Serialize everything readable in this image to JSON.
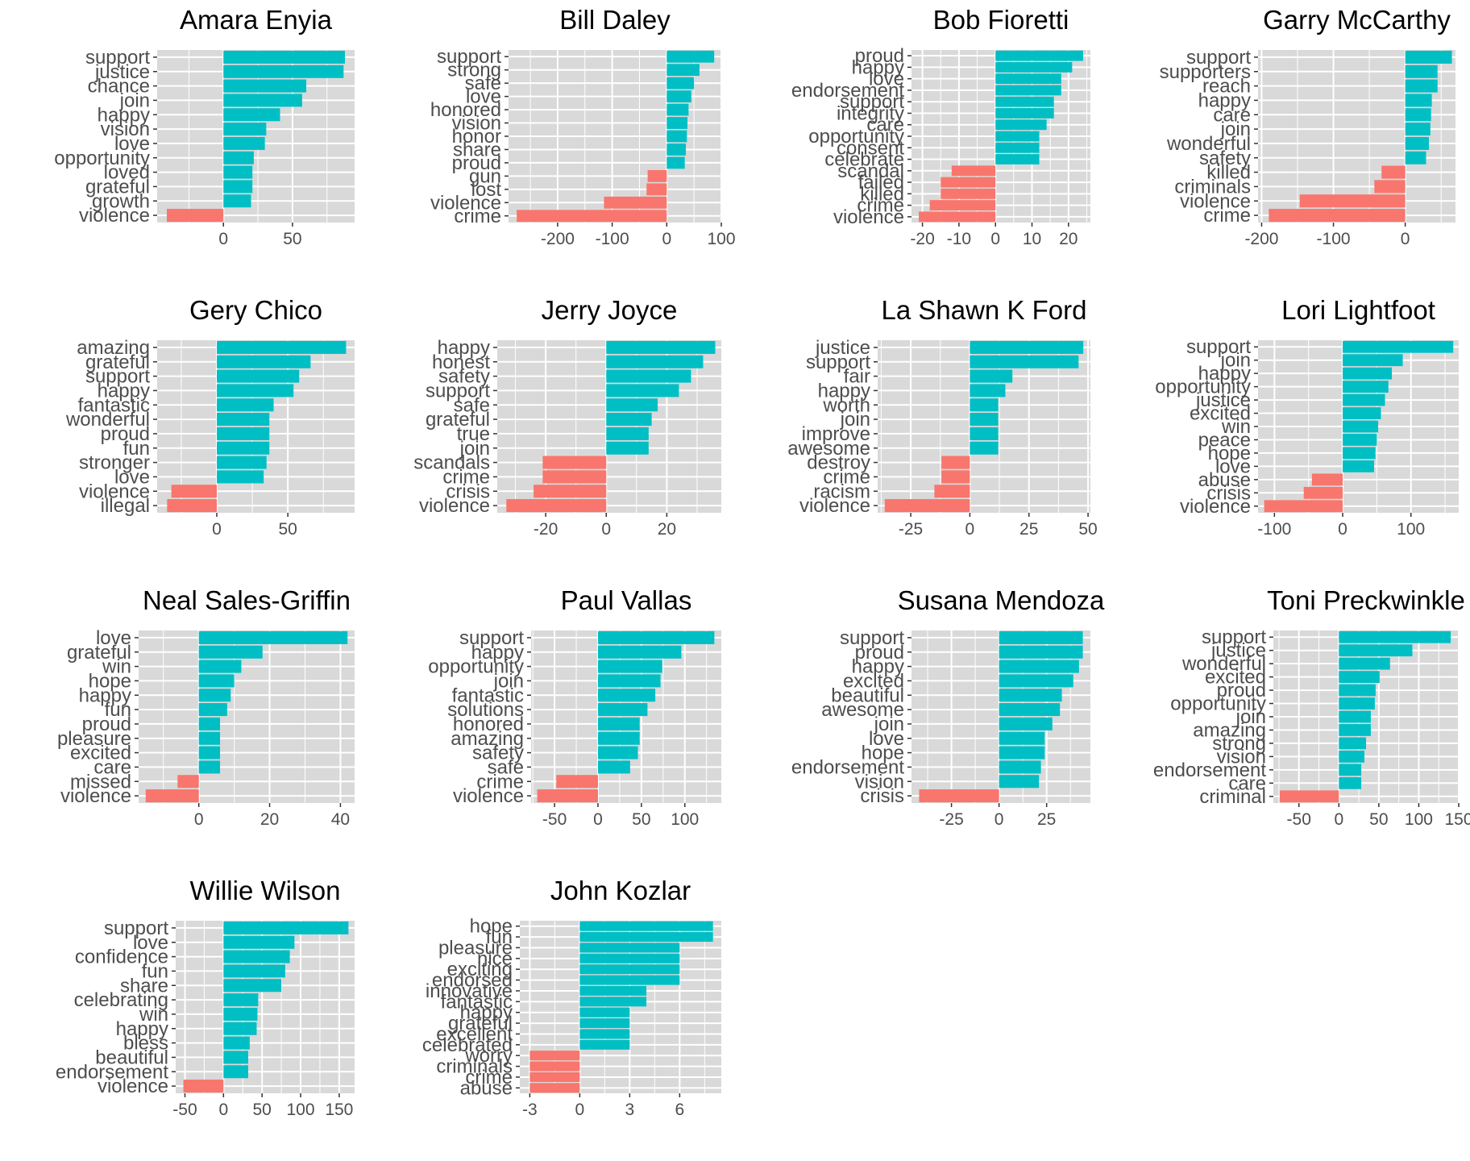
{
  "figure": {
    "colors": {
      "positive": "#00bfc4",
      "negative": "#f8766d",
      "panel_bg": "#d9d9d9",
      "grid": "#ffffff",
      "text": "#4d4d4d"
    }
  },
  "chart_data": [
    {
      "type": "bar",
      "orientation": "horizontal",
      "title": "Amara Enyia",
      "categories": [
        "support",
        "justice",
        "chance",
        "join",
        "happy",
        "vision",
        "love",
        "opportunity",
        "loved",
        "grateful",
        "growth",
        "violence"
      ],
      "values": [
        88,
        87,
        60,
        57,
        41,
        31,
        30,
        22,
        21,
        21,
        20,
        -41
      ],
      "xticks": [
        0,
        50
      ],
      "xlim": [
        -48,
        95
      ]
    },
    {
      "type": "bar",
      "orientation": "horizontal",
      "title": "Bill Daley",
      "categories": [
        "support",
        "strong",
        "safe",
        "love",
        "honored",
        "vision",
        "honor",
        "share",
        "proud",
        "gun",
        "lost",
        "violence",
        "crime"
      ],
      "values": [
        87,
        60,
        50,
        45,
        40,
        38,
        37,
        35,
        33,
        -35,
        -37,
        -115,
        -275
      ],
      "xticks": [
        -200,
        -100,
        0,
        100
      ],
      "xlim": [
        -290,
        100
      ]
    },
    {
      "type": "bar",
      "orientation": "horizontal",
      "title": "Bob Fioretti",
      "categories": [
        "proud",
        "happy",
        "love",
        "endorsement",
        "support",
        "integrity",
        "care",
        "opportunity",
        "consent",
        "celebrate",
        "scandal",
        "failed",
        "killed",
        "crime",
        "violence"
      ],
      "values": [
        24,
        21,
        18,
        18,
        16,
        16,
        14,
        12,
        12,
        12,
        -12,
        -15,
        -15,
        -18,
        -21
      ],
      "xticks": [
        -20,
        -10,
        0,
        10,
        20
      ],
      "xlim": [
        -23,
        26
      ]
    },
    {
      "type": "bar",
      "orientation": "horizontal",
      "title": "Garry McCarthy",
      "categories": [
        "support",
        "supporters",
        "reach",
        "happy",
        "care",
        "join",
        "wonderful",
        "safety",
        "killed",
        "criminals",
        "violence",
        "crime"
      ],
      "values": [
        65,
        45,
        45,
        37,
        36,
        35,
        33,
        29,
        -33,
        -43,
        -147,
        -190
      ],
      "xticks": [
        -200,
        -100,
        0
      ],
      "xlim": [
        -205,
        70
      ]
    },
    {
      "type": "bar",
      "orientation": "horizontal",
      "title": "Gery Chico",
      "categories": [
        "amazing",
        "grateful",
        "support",
        "happy",
        "fantastic",
        "wonderful",
        "proud",
        "fun",
        "stronger",
        "love",
        "violence",
        "illegal"
      ],
      "values": [
        91,
        66,
        58,
        54,
        40,
        37,
        37,
        37,
        35,
        33,
        -32,
        -35
      ],
      "xticks": [
        0,
        50
      ],
      "xlim": [
        -42,
        97
      ]
    },
    {
      "type": "bar",
      "orientation": "horizontal",
      "title": "Jerry Joyce",
      "categories": [
        "happy",
        "honest",
        "safety",
        "support",
        "safe",
        "grateful",
        "true",
        "join",
        "scandals",
        "crime",
        "crisis",
        "violence"
      ],
      "values": [
        36,
        32,
        28,
        24,
        17,
        15,
        14,
        14,
        -21,
        -21,
        -24,
        -33
      ],
      "xticks": [
        -20,
        0,
        20
      ],
      "xlim": [
        -36,
        38
      ]
    },
    {
      "type": "bar",
      "orientation": "horizontal",
      "title": "La Shawn K Ford",
      "categories": [
        "justice",
        "support",
        "fair",
        "happy",
        "worth",
        "join",
        "improve",
        "awesome",
        "destroy",
        "crime",
        "racism",
        "violence"
      ],
      "values": [
        48,
        46,
        18,
        15,
        12,
        12,
        12,
        12,
        -12,
        -12,
        -15,
        -36
      ],
      "xticks": [
        -25,
        0,
        25,
        50
      ],
      "xlim": [
        -39,
        51
      ]
    },
    {
      "type": "bar",
      "orientation": "horizontal",
      "title": "Lori Lightfoot",
      "categories": [
        "support",
        "join",
        "happy",
        "opportunity",
        "justice",
        "excited",
        "win",
        "peace",
        "hope",
        "love",
        "abuse",
        "crisis",
        "violence"
      ],
      "values": [
        162,
        88,
        72,
        67,
        62,
        56,
        52,
        50,
        48,
        46,
        -45,
        -57,
        -115
      ],
      "xticks": [
        -100,
        0,
        100
      ],
      "xlim": [
        -124,
        170
      ]
    },
    {
      "type": "bar",
      "orientation": "horizontal",
      "title": "Neal Sales-Griffin",
      "categories": [
        "love",
        "grateful",
        "win",
        "hope",
        "happy",
        "fun",
        "proud",
        "pleasure",
        "excited",
        "care",
        "missed",
        "violence"
      ],
      "values": [
        42,
        18,
        12,
        10,
        9,
        8,
        6,
        6,
        6,
        6,
        -6,
        -15
      ],
      "xticks": [
        0,
        20,
        40
      ],
      "xlim": [
        -17,
        44
      ]
    },
    {
      "type": "bar",
      "orientation": "horizontal",
      "title": "Paul Vallas",
      "categories": [
        "support",
        "happy",
        "opportunity",
        "join",
        "fantastic",
        "solutions",
        "honored",
        "amazing",
        "safety",
        "safe",
        "crime",
        "violence"
      ],
      "values": [
        134,
        96,
        74,
        72,
        66,
        57,
        48,
        48,
        46,
        37,
        -48,
        -70
      ],
      "xticks": [
        -50,
        0,
        50,
        100
      ],
      "xlim": [
        -77,
        142
      ]
    },
    {
      "type": "bar",
      "orientation": "horizontal",
      "title": "Susana Mendoza",
      "categories": [
        "support",
        "proud",
        "happy",
        "excited",
        "beautiful",
        "awesome",
        "join",
        "love",
        "hope",
        "endorsement",
        "vision",
        "crisis"
      ],
      "values": [
        44,
        44,
        42,
        39,
        33,
        32,
        28,
        24,
        24,
        22,
        21,
        -42
      ],
      "xticks": [
        -25,
        0,
        25
      ],
      "xlim": [
        -46,
        48
      ]
    },
    {
      "type": "bar",
      "orientation": "horizontal",
      "title": "Toni Preckwinkle",
      "categories": [
        "support",
        "justice",
        "wonderful",
        "excited",
        "proud",
        "opportunity",
        "join",
        "amazing",
        "strong",
        "vision",
        "endorsement",
        "care",
        "criminal"
      ],
      "values": [
        140,
        92,
        64,
        51,
        46,
        45,
        40,
        40,
        34,
        32,
        28,
        28,
        -74
      ],
      "xticks": [
        -50,
        0,
        50,
        100,
        150
      ],
      "xlim": [
        -82,
        150
      ]
    },
    {
      "type": "bar",
      "orientation": "horizontal",
      "title": "Willie Wilson",
      "categories": [
        "support",
        "love",
        "confidence",
        "fun",
        "share",
        "celebrating",
        "win",
        "happy",
        "bless",
        "beautiful",
        "endorsement",
        "violence"
      ],
      "values": [
        162,
        92,
        86,
        80,
        75,
        45,
        44,
        43,
        34,
        32,
        32,
        -52
      ],
      "xticks": [
        -50,
        0,
        50,
        100,
        150
      ],
      "xlim": [
        -62,
        170
      ]
    },
    {
      "type": "bar",
      "orientation": "horizontal",
      "title": "John Kozlar",
      "categories": [
        "hope",
        "fun",
        "pleasure",
        "nice",
        "exciting",
        "endorsed",
        "innovative",
        "fantastic",
        "happy",
        "grateful",
        "excellent",
        "celebrated",
        "worry",
        "criminals",
        "crime",
        "abuse"
      ],
      "values": [
        8,
        8,
        6,
        6,
        6,
        6,
        4,
        4,
        3,
        3,
        3,
        3,
        -3,
        -3,
        -3,
        -3
      ],
      "xticks": [
        -3,
        0,
        3,
        6
      ],
      "xlim": [
        -3.6,
        8.5
      ]
    }
  ]
}
